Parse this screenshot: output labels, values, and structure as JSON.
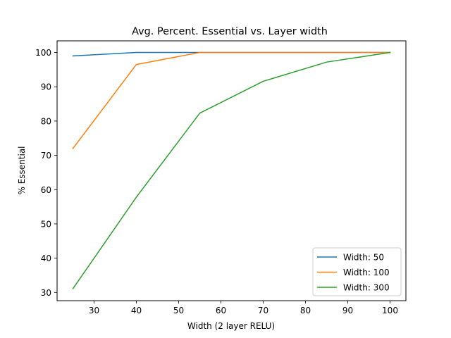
{
  "chart_data": {
    "type": "line",
    "title": "Avg. Percent. Essential vs. Layer width",
    "xlabel": "Width (2 layer RELU)",
    "ylabel": "% Essential",
    "xlim": [
      21.25,
      103.75
    ],
    "ylim": [
      27.6,
      103.4
    ],
    "xticks": [
      30,
      40,
      50,
      60,
      70,
      80,
      90,
      100
    ],
    "yticks": [
      30,
      40,
      50,
      60,
      70,
      80,
      90,
      100
    ],
    "grid": false,
    "legend_position": "lower-right",
    "series": [
      {
        "name": "Width: 50",
        "color": "#1f77b4",
        "x": [
          25,
          40,
          55,
          70,
          85,
          100
        ],
        "y": [
          99.0,
          100.0,
          100.0,
          100.0,
          100.0,
          100.0
        ]
      },
      {
        "name": "Width: 100",
        "color": "#ff7f0e",
        "x": [
          25,
          40,
          55,
          70,
          85,
          100
        ],
        "y": [
          72.0,
          96.5,
          100.0,
          100.0,
          100.0,
          100.0
        ]
      },
      {
        "name": "Width: 300",
        "color": "#2ca02c",
        "x": [
          25,
          40,
          55,
          70,
          85,
          100
        ],
        "y": [
          31.1,
          57.8,
          82.3,
          91.6,
          97.2,
          100.0
        ]
      }
    ]
  }
}
